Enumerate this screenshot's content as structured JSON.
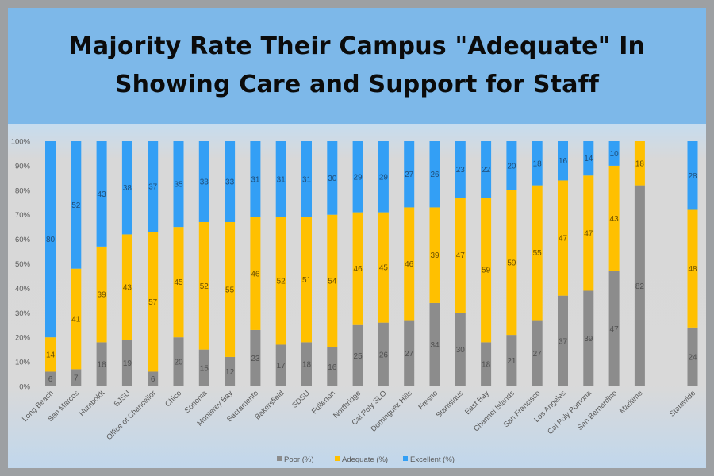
{
  "chart_data": {
    "type": "bar",
    "stacked": true,
    "title": "Majority Rate Their Campus \"Adequate\" In Showing Care and Support for Staff",
    "title_lines": [
      "Majority Rate Their Campus \"Adequate\" In",
      "Showing Care and Support for Staff"
    ],
    "xlabel": "",
    "ylabel": "",
    "ylim": [
      0,
      100
    ],
    "yticks": [
      "0%",
      "10%",
      "20%",
      "30%",
      "40%",
      "50%",
      "60%",
      "70%",
      "80%",
      "90%",
      "100%"
    ],
    "grid": false,
    "legend_position": "bottom",
    "categories": [
      "Long Beach",
      "San Marcos",
      "Humboldt",
      "SJSU",
      "Office of Chancellor",
      "Chico",
      "Sonoma",
      "Monterey Bay",
      "Sacramento",
      "Bakersfield",
      "SDSU",
      "Fullerton",
      "Northridge",
      "Cal Poly SLO",
      "Dominguez Hills",
      "Fresno",
      "Stanislaus",
      "East Bay",
      "Channel Islands",
      "San Francisco",
      "Los Angeles",
      "Cal Poly Pomona",
      "San Bernardino",
      "Maritime",
      "Statewide"
    ],
    "series": [
      {
        "name": "Poor  (%)",
        "color": "#8c8c8c",
        "label_color": "#505050",
        "values": [
          6,
          7,
          18,
          19,
          6,
          20,
          15,
          12,
          23,
          17,
          18,
          16,
          25,
          26,
          27,
          34,
          30,
          18,
          21,
          27,
          37,
          39,
          47,
          82,
          24
        ]
      },
      {
        "name": "Adequate (%)",
        "color": "#ffc000",
        "label_color": "#6b4f00",
        "values": [
          14,
          41,
          39,
          43,
          57,
          45,
          52,
          55,
          46,
          52,
          51,
          54,
          46,
          45,
          46,
          39,
          47,
          59,
          59,
          55,
          47,
          47,
          43,
          18,
          48
        ]
      },
      {
        "name": "Excellent (%)",
        "color": "#339ff5",
        "label_color": "#1f4e79",
        "values": [
          80,
          52,
          43,
          38,
          37,
          35,
          33,
          33,
          31,
          31,
          31,
          30,
          29,
          29,
          27,
          26,
          23,
          22,
          20,
          18,
          16,
          14,
          10,
          null,
          28
        ]
      }
    ]
  },
  "colors": {
    "frame": "#9da0a3",
    "title_panel": "#7db8e9"
  }
}
